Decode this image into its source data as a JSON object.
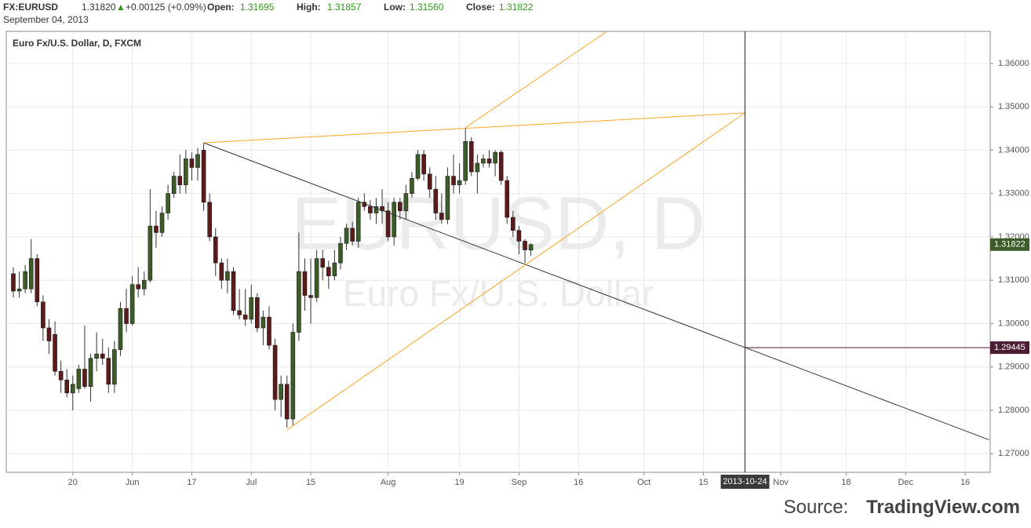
{
  "header": {
    "symbol": "FX:EURUSD",
    "last": "1.31820",
    "arrow": "▲",
    "change": "+0.00125 (+0.09%)",
    "open_label": "Open:",
    "open": "1.31695",
    "high_label": "High:",
    "high": "1.31857",
    "low_label": "Low:",
    "low": "1.31560",
    "close_label": "Close:",
    "close": "1.31822",
    "date": "September 04, 2013"
  },
  "source": {
    "prefix": "Source:",
    "name": "TradingView.com"
  },
  "chart_data": {
    "type": "candlestick",
    "title": "Euro Fx/U.S. Dollar, D, FXCM",
    "watermark": "EURUSD, D",
    "watermark_subtitle": "Euro Fx/U.S. Dollar",
    "x": [
      "2013-05-06",
      "2013-05-07",
      "2013-05-08",
      "2013-05-09",
      "2013-05-10",
      "2013-05-13",
      "2013-05-14",
      "2013-05-15",
      "2013-05-16",
      "2013-05-17",
      "2013-05-20",
      "2013-05-21",
      "2013-05-22",
      "2013-05-23",
      "2013-05-24",
      "2013-05-27",
      "2013-05-28",
      "2013-05-29",
      "2013-05-30",
      "2013-05-31",
      "2013-06-03",
      "2013-06-04",
      "2013-06-05",
      "2013-06-06",
      "2013-06-07",
      "2013-06-10",
      "2013-06-11",
      "2013-06-12",
      "2013-06-13",
      "2013-06-14",
      "2013-06-17",
      "2013-06-18",
      "2013-06-19",
      "2013-06-20",
      "2013-06-21",
      "2013-06-24",
      "2013-06-25",
      "2013-06-26",
      "2013-06-27",
      "2013-06-28",
      "2013-07-01",
      "2013-07-02",
      "2013-07-03",
      "2013-07-04",
      "2013-07-05",
      "2013-07-08",
      "2013-07-09",
      "2013-07-10",
      "2013-07-11",
      "2013-07-12",
      "2013-07-15",
      "2013-07-16",
      "2013-07-17",
      "2013-07-18",
      "2013-07-19",
      "2013-07-22",
      "2013-07-23",
      "2013-07-24",
      "2013-07-25",
      "2013-07-26",
      "2013-07-29",
      "2013-07-30",
      "2013-07-31",
      "2013-08-01",
      "2013-08-02",
      "2013-08-05",
      "2013-08-06",
      "2013-08-07",
      "2013-08-08",
      "2013-08-09",
      "2013-08-12",
      "2013-08-13",
      "2013-08-14",
      "2013-08-15",
      "2013-08-16",
      "2013-08-19",
      "2013-08-20",
      "2013-08-21",
      "2013-08-22",
      "2013-08-23",
      "2013-08-26",
      "2013-08-27",
      "2013-08-28",
      "2013-08-29",
      "2013-08-30",
      "2013-09-02",
      "2013-09-03",
      "2013-09-04"
    ],
    "open": [
      1.3115,
      1.3075,
      1.308,
      1.308,
      1.315,
      1.305,
      1.299,
      1.2975,
      1.289,
      1.287,
      1.284,
      1.285,
      1.2895,
      1.2855,
      1.292,
      1.293,
      1.292,
      1.286,
      1.294,
      1.3035,
      1.3,
      1.309,
      1.308,
      1.31,
      1.3225,
      1.321,
      1.3255,
      1.33,
      1.334,
      1.332,
      1.338,
      1.336,
      1.34,
      1.328,
      1.32,
      1.314,
      1.31,
      1.312,
      1.303,
      1.302,
      1.301,
      1.306,
      1.299,
      1.3015,
      1.295,
      1.2825,
      1.286,
      1.278,
      1.298,
      1.312,
      1.3065,
      1.306,
      1.315,
      1.313,
      1.311,
      1.314,
      1.3185,
      1.322,
      1.319,
      1.328,
      1.327,
      1.3255,
      1.327,
      1.326,
      1.32,
      1.328,
      1.326,
      1.33,
      1.3335,
      1.339,
      1.3345,
      1.331,
      1.3255,
      1.324,
      1.334,
      1.332,
      1.333,
      1.342,
      1.335,
      1.337,
      1.338,
      1.337,
      1.3395,
      1.333,
      1.3245,
      1.3215,
      1.319,
      1.31695
    ],
    "high": [
      1.313,
      1.312,
      1.3135,
      1.3195,
      1.316,
      1.3065,
      1.301,
      1.3005,
      1.2915,
      1.2895,
      1.288,
      1.2905,
      1.2995,
      1.293,
      1.298,
      1.2965,
      1.2945,
      1.296,
      1.305,
      1.308,
      1.311,
      1.313,
      1.312,
      1.331,
      1.326,
      1.327,
      1.332,
      1.335,
      1.339,
      1.34,
      1.3395,
      1.3405,
      1.3417,
      1.33,
      1.322,
      1.315,
      1.315,
      1.313,
      1.308,
      1.308,
      1.309,
      1.307,
      1.303,
      1.304,
      1.2965,
      1.288,
      1.288,
      1.3,
      1.321,
      1.315,
      1.315,
      1.317,
      1.317,
      1.3145,
      1.317,
      1.32,
      1.323,
      1.3235,
      1.329,
      1.33,
      1.3285,
      1.329,
      1.331,
      1.328,
      1.329,
      1.329,
      1.332,
      1.335,
      1.34,
      1.34,
      1.336,
      1.334,
      1.33,
      1.336,
      1.339,
      1.337,
      1.3452,
      1.343,
      1.339,
      1.339,
      1.34,
      1.34,
      1.34,
      1.334,
      1.326,
      1.3225,
      1.3195,
      1.31857
    ],
    "low": [
      1.306,
      1.306,
      1.307,
      1.307,
      1.304,
      1.296,
      1.293,
      1.288,
      1.284,
      1.283,
      1.28,
      1.284,
      1.285,
      1.282,
      1.289,
      1.2905,
      1.284,
      1.284,
      1.2925,
      1.298,
      1.2995,
      1.306,
      1.3065,
      1.3095,
      1.3175,
      1.32,
      1.324,
      1.329,
      1.33,
      1.33,
      1.333,
      1.333,
      1.326,
      1.319,
      1.311,
      1.308,
      1.307,
      1.302,
      1.301,
      1.2995,
      1.3,
      1.298,
      1.295,
      1.294,
      1.28,
      1.2785,
      1.276,
      1.2765,
      1.296,
      1.303,
      1.3,
      1.305,
      1.31,
      1.308,
      1.31,
      1.3125,
      1.317,
      1.318,
      1.3175,
      1.326,
      1.324,
      1.323,
      1.323,
      1.319,
      1.318,
      1.324,
      1.324,
      1.329,
      1.333,
      1.333,
      1.329,
      1.324,
      1.323,
      1.323,
      1.33,
      1.33,
      1.332,
      1.334,
      1.33,
      1.336,
      1.336,
      1.334,
      1.332,
      1.323,
      1.32,
      1.316,
      1.314,
      1.3156
    ],
    "close": [
      1.3075,
      1.308,
      1.312,
      1.315,
      1.305,
      1.299,
      1.296,
      1.289,
      1.287,
      1.284,
      1.286,
      1.2895,
      1.2855,
      1.292,
      1.293,
      1.292,
      1.286,
      1.294,
      1.3035,
      1.3,
      1.309,
      1.308,
      1.31,
      1.3225,
      1.321,
      1.3255,
      1.33,
      1.334,
      1.332,
      1.338,
      1.336,
      1.339,
      1.328,
      1.32,
      1.314,
      1.31,
      1.312,
      1.303,
      1.302,
      1.301,
      1.306,
      1.299,
      1.3015,
      1.295,
      1.2825,
      1.286,
      1.278,
      1.298,
      1.312,
      1.3065,
      1.306,
      1.315,
      1.313,
      1.311,
      1.314,
      1.3185,
      1.322,
      1.319,
      1.328,
      1.327,
      1.3255,
      1.327,
      1.326,
      1.32,
      1.328,
      1.326,
      1.33,
      1.3335,
      1.339,
      1.3345,
      1.331,
      1.3255,
      1.324,
      1.334,
      1.332,
      1.333,
      1.342,
      1.335,
      1.337,
      1.338,
      1.337,
      1.3395,
      1.333,
      1.3245,
      1.3215,
      1.319,
      1.317,
      1.31822
    ],
    "up_color": "#3d5c27",
    "down_color": "#5c1a1a",
    "wick_color": "#333333",
    "xlim": [
      "2013-05-03",
      "2013-12-20"
    ],
    "xticks": [
      {
        "value": "2013-05-20",
        "label": "20"
      },
      {
        "value": "2013-06-03",
        "label": "Jun"
      },
      {
        "value": "2013-06-17",
        "label": "17"
      },
      {
        "value": "2013-07-01",
        "label": "Jul"
      },
      {
        "value": "2013-07-15",
        "label": "15"
      },
      {
        "value": "2013-08-01",
        "label": "Aug"
      },
      {
        "value": "2013-08-19",
        "label": "19"
      },
      {
        "value": "2013-09-02",
        "label": "Sep"
      },
      {
        "value": "2013-09-16",
        "label": "16"
      },
      {
        "value": "2013-10-01",
        "label": "Oct"
      },
      {
        "value": "2013-10-15",
        "label": "15"
      },
      {
        "value": "2013-11-01",
        "label": "Nov"
      },
      {
        "value": "2013-11-18",
        "label": "18"
      },
      {
        "value": "2013-12-02",
        "label": "Dec"
      },
      {
        "value": "2013-12-16",
        "label": "16"
      }
    ],
    "ylim": [
      1.2657,
      1.3674
    ],
    "yticks": [
      {
        "value": 1.27,
        "label": "1.27000"
      },
      {
        "value": 1.28,
        "label": "1.28000"
      },
      {
        "value": 1.29,
        "label": "1.29000"
      },
      {
        "value": 1.3,
        "label": "1.30000"
      },
      {
        "value": 1.31,
        "label": "1.31000"
      },
      {
        "value": 1.32,
        "label": "1.32000"
      },
      {
        "value": 1.33,
        "label": "1.33000"
      },
      {
        "value": 1.34,
        "label": "1.34000"
      },
      {
        "value": 1.35,
        "label": "1.35000"
      },
      {
        "value": 1.36,
        "label": "1.36000"
      }
    ],
    "grid": true,
    "trend_lines": [
      {
        "color": "#333333",
        "points": [
          {
            "x": "2013-06-19",
            "y": 1.3417
          },
          {
            "x": "2013-12-20",
            "y": 1.2732
          }
        ]
      },
      {
        "color": "#f5a623",
        "points": [
          {
            "x": "2013-06-19",
            "y": 1.3417
          },
          {
            "x": "2013-10-24",
            "y": 1.3486
          }
        ]
      },
      {
        "color": "#f5a623",
        "points": [
          {
            "x": "2013-07-09",
            "y": 1.2755
          },
          {
            "x": "2013-10-24",
            "y": 1.3486
          }
        ]
      },
      {
        "color": "#f5a623",
        "points": [
          {
            "x": "2013-08-20",
            "y": 1.3452
          },
          {
            "x": "2013-09-23",
            "y": 1.3676
          }
        ]
      }
    ],
    "vertical_line": {
      "x": "2013-10-24",
      "label": "2013-10-24",
      "color": "#222222"
    },
    "horizontal_ray": {
      "x": "2013-10-24",
      "y": 1.29445,
      "label": "1.29445",
      "color": "#4a1b33"
    }
  }
}
